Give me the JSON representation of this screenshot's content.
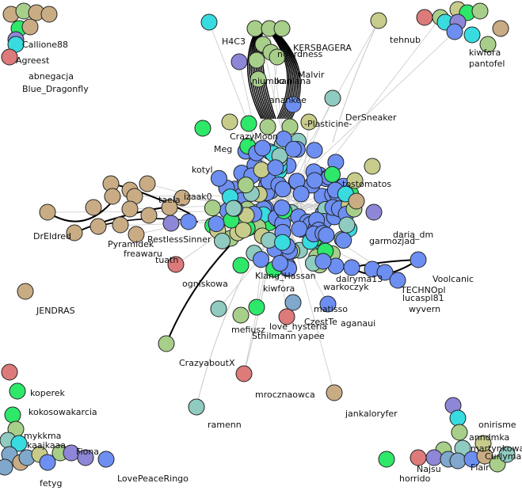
{
  "colors": {
    "blue": "#6d8ff2",
    "tan": "#c9ac84",
    "green": "#a8cf8a",
    "teal": "#8fcbc0",
    "lime": "#2ee86a",
    "cyan": "#38dbe0",
    "pink": "#dd7a7a",
    "purple": "#8e86d6",
    "olive": "#c7cc8a",
    "steel": "#7fa8cc",
    "edge_light": "#c8c8c8",
    "edge_dark": "#000000"
  },
  "labels": [
    "Callione88",
    "Agreest",
    "abnegacja",
    "Blue_Dragonfly",
    "H4C3",
    "KERSBAGERA",
    "ngardness",
    "Malvir",
    "ikaniana",
    "niumbo",
    "anankee",
    "DerSneaker",
    "-Plasticine-",
    "tehnub",
    "kiwfora",
    "pantofel",
    "izaak0",
    "taela_",
    "Pyramidek",
    "freawaru",
    "DrEldred",
    "RestlessSinner",
    "tuath",
    "ogniskowa",
    "tostomatos",
    "daria_dm",
    "garmozjad",
    "Voolcanic",
    "TECHNOpl",
    "lucaspl81",
    "wyvern",
    "matisso",
    "dalryma13",
    "warkoczyk",
    "CzestTe",
    "aganaui",
    "yapee",
    "love_hysteria",
    "Sthilmann",
    "kiwfora",
    "mefiusz",
    "CrazyaboutX",
    "JENDRAS",
    "mrocznaowca",
    "jankaloryfer",
    "ramenn",
    "koperek",
    "kokosowakarcia",
    "mykkma",
    "kaajkaaa",
    "Fiona",
    "LovePeaceRingo",
    "fetyg",
    "onirisme",
    "anndmka",
    "martynkowa",
    "Curlyman",
    "horrido",
    "Najsu",
    "Flair",
    "Klang_Hassan",
    "kotyl",
    "Meg",
    "CrazyMoon"
  ]
}
